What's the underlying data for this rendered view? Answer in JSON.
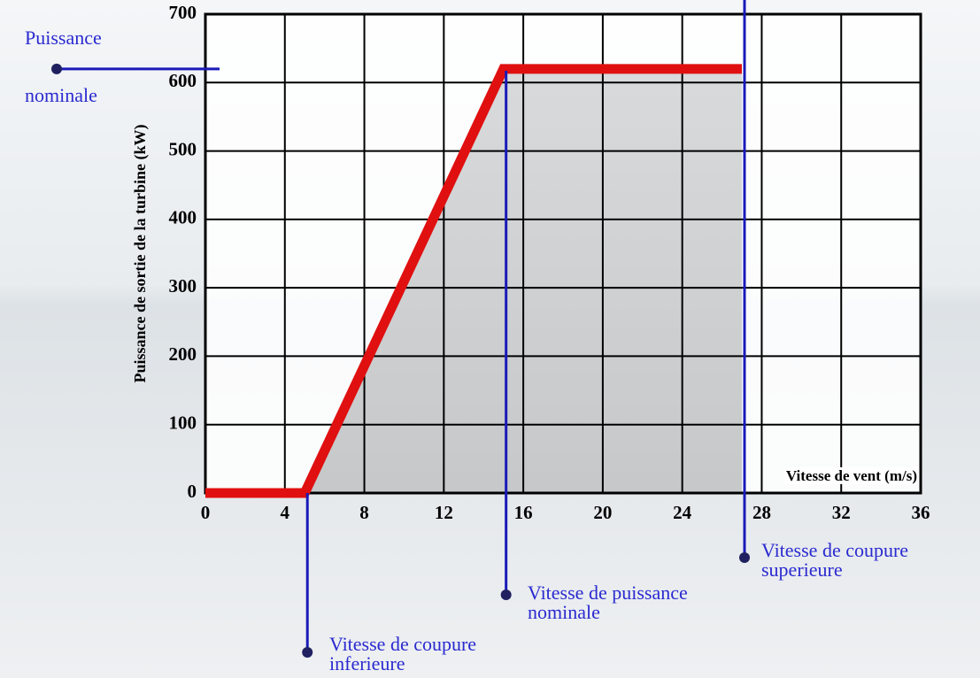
{
  "chart_data": {
    "type": "line",
    "x_label": "Vitesse de vent  (m/s)",
    "y_label": "Puissance de sortie de la turbine (kW)",
    "x": [
      0,
      5,
      15,
      27
    ],
    "series": [
      {
        "color": "#e01010",
        "values": [
          0,
          0,
          620,
          620
        ]
      }
    ],
    "fill_color": "#c8c8c8",
    "xlim": [
      0,
      36
    ],
    "xticks": [
      0,
      4,
      8,
      12,
      16,
      20,
      24,
      28,
      32,
      36
    ],
    "ylim": [
      0,
      700
    ],
    "yticks": [
      0,
      100,
      200,
      300,
      400,
      500,
      600,
      700
    ],
    "grid": true,
    "annotations": [
      {
        "lines": [
          "Puissance",
          "nominale"
        ]
      },
      {
        "lines": [
          "Vitesse de coupure",
          "inferieure"
        ]
      },
      {
        "lines": [
          "Vitesse de puissance",
          "nominale"
        ]
      },
      {
        "lines": [
          "Vitesse de coupure",
          "superieure"
        ]
      }
    ]
  }
}
